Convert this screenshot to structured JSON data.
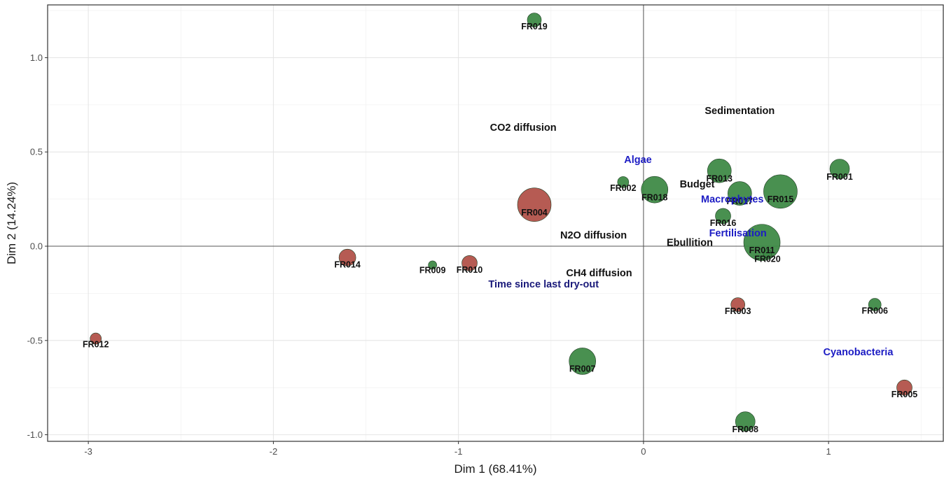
{
  "chart_data": {
    "type": "scatter",
    "xlabel": "Dim 1 (68.41%)",
    "ylabel": "Dim 2 (14.24%)",
    "xlim": [
      -3.22,
      1.62
    ],
    "ylim": [
      -1.035,
      1.28
    ],
    "x_ticks": [
      {
        "value": -3,
        "label": "-3"
      },
      {
        "value": -2,
        "label": "-2"
      },
      {
        "value": -1,
        "label": "-1"
      },
      {
        "value": 0,
        "label": "0"
      },
      {
        "value": 1,
        "label": "1"
      }
    ],
    "y_ticks": [
      {
        "value": 1.0,
        "label": "1.0"
      },
      {
        "value": 0.5,
        "label": "0.5"
      },
      {
        "value": 0.0,
        "label": "0.0"
      },
      {
        "value": -0.5,
        "label": "-0.5"
      },
      {
        "value": -1.0,
        "label": "-1.0"
      }
    ],
    "grid": true,
    "colors": {
      "green": "#3f8a47",
      "red": "#b2524a",
      "black_label": "#111111",
      "blue_label": "#1c1cc4",
      "navy_label": "#1a1a7a"
    },
    "points": [
      {
        "label": "FR001",
        "x": 1.06,
        "y": 0.41,
        "size": 14,
        "color": "green"
      },
      {
        "label": "FR002",
        "x": -0.11,
        "y": 0.34,
        "size": 8,
        "color": "green"
      },
      {
        "label": "FR003",
        "x": 0.51,
        "y": -0.31,
        "size": 10,
        "color": "red"
      },
      {
        "label": "FR004",
        "x": -0.59,
        "y": 0.22,
        "size": 24,
        "color": "red"
      },
      {
        "label": "FR005",
        "x": 1.41,
        "y": -0.75,
        "size": 11,
        "color": "red"
      },
      {
        "label": "FR006",
        "x": 1.25,
        "y": -0.31,
        "size": 9,
        "color": "green"
      },
      {
        "label": "FR007",
        "x": -0.33,
        "y": -0.61,
        "size": 19,
        "color": "green"
      },
      {
        "label": "FR008",
        "x": 0.55,
        "y": -0.93,
        "size": 14,
        "color": "green"
      },
      {
        "label": "FR009",
        "x": -1.14,
        "y": -0.1,
        "size": 6,
        "color": "green"
      },
      {
        "label": "FR010",
        "x": -0.94,
        "y": -0.09,
        "size": 11,
        "color": "red"
      },
      {
        "label": "FR011",
        "x": 0.64,
        "y": 0.02,
        "size": 26,
        "color": "green"
      },
      {
        "label": "FR012",
        "x": -2.96,
        "y": -0.49,
        "size": 8,
        "color": "red"
      },
      {
        "label": "FR013",
        "x": 0.41,
        "y": 0.4,
        "size": 17,
        "color": "green"
      },
      {
        "label": "FR014",
        "x": -1.6,
        "y": -0.06,
        "size": 12,
        "color": "red"
      },
      {
        "label": "FR015",
        "x": 0.74,
        "y": 0.29,
        "size": 24,
        "color": "green"
      },
      {
        "label": "FR016",
        "x": 0.43,
        "y": 0.16,
        "size": 11,
        "color": "green"
      },
      {
        "label": "FR017",
        "x": 0.52,
        "y": 0.28,
        "size": 17,
        "color": "green"
      },
      {
        "label": "FR018",
        "x": 0.06,
        "y": 0.3,
        "size": 19,
        "color": "green"
      },
      {
        "label": "FR019",
        "x": -0.59,
        "y": 1.2,
        "size": 10,
        "color": "green"
      },
      {
        "label": "FR020",
        "x": 0.67,
        "y": -0.04,
        "size": 6,
        "color": "green"
      }
    ],
    "variables": [
      {
        "label": "Sedimentation",
        "x": 0.52,
        "y": 0.72,
        "color": "black_label"
      },
      {
        "label": "CO2 diffusion",
        "x": -0.65,
        "y": 0.63,
        "color": "black_label"
      },
      {
        "label": "Algae",
        "x": -0.03,
        "y": 0.46,
        "color": "blue_label"
      },
      {
        "label": "Budget",
        "x": 0.29,
        "y": 0.33,
        "color": "black_label"
      },
      {
        "label": "Macrophytes",
        "x": 0.48,
        "y": 0.25,
        "color": "blue_label"
      },
      {
        "label": "N2O diffusion",
        "x": -0.27,
        "y": 0.06,
        "color": "black_label"
      },
      {
        "label": "Fertilisation",
        "x": 0.51,
        "y": 0.07,
        "color": "blue_label"
      },
      {
        "label": "Ebullition",
        "x": 0.25,
        "y": 0.02,
        "color": "black_label"
      },
      {
        "label": "CH4 diffusion",
        "x": -0.24,
        "y": -0.14,
        "color": "black_label"
      },
      {
        "label": "Time since last dry-out",
        "x": -0.54,
        "y": -0.2,
        "color": "navy_label"
      },
      {
        "label": "Cyanobacteria",
        "x": 1.16,
        "y": -0.56,
        "color": "blue_label"
      }
    ]
  }
}
